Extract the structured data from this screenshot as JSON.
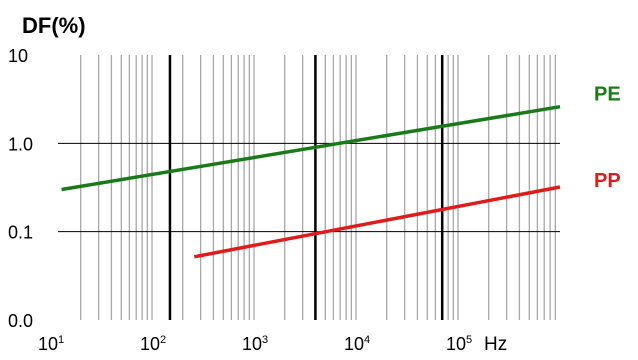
{
  "chart_data": {
    "type": "line",
    "title": "",
    "ylabel": "DF(%)",
    "xlabel": "Hz",
    "x_scale": "log",
    "y_scale": "log",
    "xlim": [
      10,
      1000000
    ],
    "ylim": [
      0.01,
      10
    ],
    "grid": true,
    "y_ticks": [
      {
        "value": 0.01,
        "label": "0.0"
      },
      {
        "value": 0.1,
        "label": "0.1"
      },
      {
        "value": 1,
        "label": "1.0"
      },
      {
        "value": 10,
        "label": "10"
      }
    ],
    "x_ticks": [
      {
        "value": 10,
        "base": "10",
        "exp": "1"
      },
      {
        "value": 100,
        "base": "10",
        "exp": "2"
      },
      {
        "value": 1000,
        "base": "10",
        "exp": "3"
      },
      {
        "value": 10000,
        "base": "10",
        "exp": "4"
      },
      {
        "value": 100000,
        "base": "10",
        "exp": "5"
      }
    ],
    "heavy_lines": [
      150,
      4000,
      70000
    ],
    "series": [
      {
        "name": "PE",
        "color": "#1a7a1a",
        "x": [
          13,
          1000000
        ],
        "y": [
          0.3,
          2.6
        ]
      },
      {
        "name": "PP",
        "color": "#e01b1b",
        "x": [
          260,
          1000000
        ],
        "y": [
          0.052,
          0.32
        ]
      }
    ]
  }
}
